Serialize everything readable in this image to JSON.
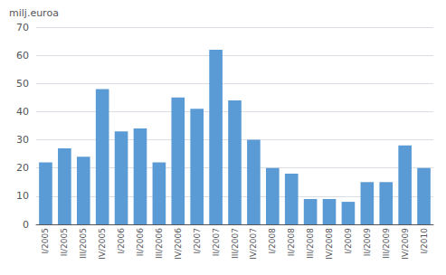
{
  "chart_data": {
    "type": "bar",
    "ylabel": "milj.euroa",
    "categories": [
      "I/2005",
      "II/2005",
      "III/2005",
      "IV/2005",
      "I/2006",
      "II/2006",
      "III/2006",
      "IV/2006",
      "I/2007",
      "II/2007",
      "III/2007",
      "IV/2007",
      "I/2008",
      "II/2008",
      "III/2008",
      "IV/2008",
      "I/2009",
      "II/2009",
      "III/2009",
      "IV/2009",
      "I/2010"
    ],
    "values": [
      22,
      27,
      24,
      48,
      33,
      34,
      22,
      45,
      41,
      62,
      44,
      30,
      20,
      18,
      9,
      9,
      8,
      15,
      15,
      28,
      20
    ],
    "color": "#5b9bd5",
    "ylim": [
      0,
      70
    ],
    "yticks": [
      0,
      10,
      20,
      30,
      40,
      50,
      60,
      70
    ],
    "grid": true
  }
}
